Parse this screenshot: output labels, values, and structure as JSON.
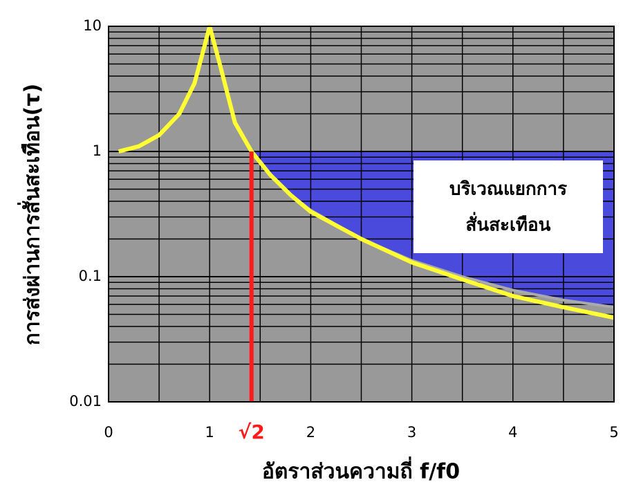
{
  "chart_data": {
    "type": "line",
    "x_label": "อัตราส่วนความถี่ f/f0",
    "y_label": "การส่งผ่านการสั่นสะเทือน(τ)",
    "xlim": [
      0,
      5
    ],
    "ylim": [
      0.01,
      10
    ],
    "log_y": true,
    "xticks": [
      0,
      1,
      2,
      3,
      4,
      5
    ],
    "yticks": [
      0.01,
      0.1,
      1,
      10
    ],
    "grid": true,
    "minor_grid": true,
    "background": "#999999",
    "series": [
      {
        "color": "#ffff33",
        "x": [
          0.1,
          0.3,
          0.5,
          0.7,
          0.85,
          0.95,
          1.0,
          1.1,
          1.25,
          1.414,
          1.6,
          1.8,
          2,
          2.5,
          3,
          3.5,
          4,
          4.5,
          5
        ],
        "values": [
          1.0,
          1.1,
          1.35,
          2.0,
          3.5,
          7,
          10,
          5,
          1.7,
          1.0,
          0.65,
          0.45,
          0.33,
          0.2,
          0.13,
          0.095,
          0.07,
          0.057,
          0.047
        ]
      },
      {
        "color": "#aaaaaa",
        "x": [
          1.414,
          1.6,
          1.8,
          2,
          2.5,
          3,
          3.5,
          4,
          4.5,
          5
        ],
        "values": [
          1.0,
          0.64,
          0.45,
          0.34,
          0.2,
          0.135,
          0.1,
          0.078,
          0.065,
          0.057
        ]
      }
    ],
    "region": {
      "upper": 1,
      "color": "#4a4adc"
    },
    "threshold": {
      "value": 1.414,
      "label": "√2",
      "color": "#ff1a1a"
    },
    "annotation": [
      "บริเวณแยกการ",
      "สั่นสะเทือน"
    ]
  }
}
